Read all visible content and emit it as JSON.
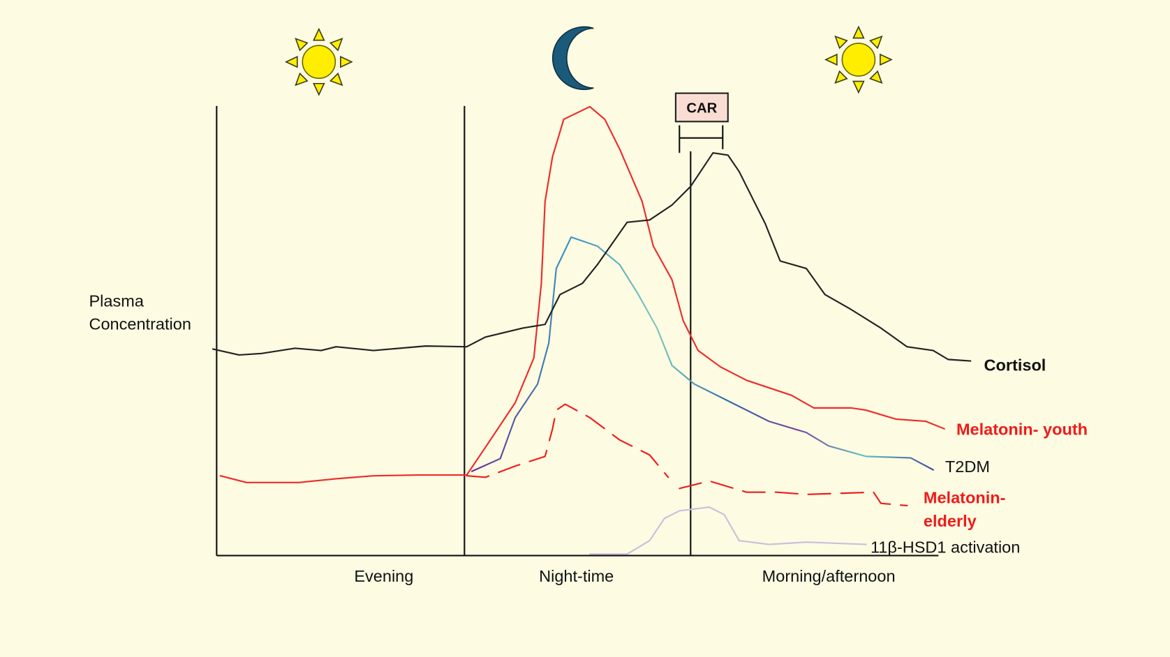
{
  "y_axis_label": [
    "Plasma",
    "Concentration"
  ],
  "periods": [
    "Evening",
    "Night-time",
    "Morning/afternoon"
  ],
  "marker": "CAR",
  "curves": [
    {
      "label_lines": [
        "Cortisol"
      ]
    },
    {
      "label_lines": [
        "Melatonin- youth"
      ]
    },
    {
      "label_lines": [
        "T2DM"
      ]
    },
    {
      "label_lines": [
        "Melatonin-",
        "elderly"
      ]
    },
    {
      "label_lines": [
        "11β-HSD1 activation"
      ]
    }
  ]
}
